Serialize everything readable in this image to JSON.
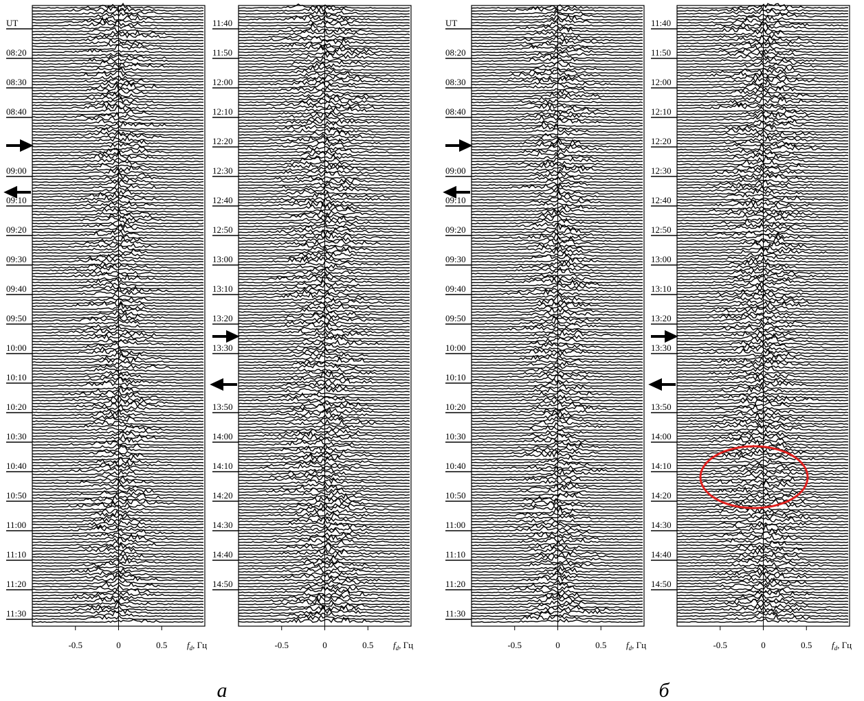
{
  "panels": [
    {
      "type": "stacked-spectra",
      "xlim": [
        -1,
        1
      ],
      "xticks": [
        -0.5,
        0,
        0.5
      ],
      "x_label": {
        "symbol": "f",
        "subscript": "d",
        "unit": ", Гц"
      },
      "time_labels": [
        "UT",
        "08:20",
        "08:30",
        "08:40",
        null,
        "09:00",
        "09:10",
        "09:20",
        "09:30",
        "09:40",
        "09:50",
        "10:00",
        "10:10",
        "10:20",
        "10:30",
        "10:40",
        "10:50",
        "11:00",
        "11:10",
        "11:20",
        "11:30"
      ]
    },
    {
      "type": "stacked-spectra",
      "xlim": [
        -1,
        1
      ],
      "xticks": [
        -0.5,
        0,
        0.5
      ],
      "x_label": {
        "symbol": "f",
        "subscript": "d",
        "unit": ", Гц"
      },
      "time_labels": [
        "11:40",
        "11:50",
        "12:00",
        "12:10",
        "12:20",
        "12:30",
        "12:40",
        "12:50",
        "13:00",
        "13:10",
        "13:20",
        "13:30",
        null,
        "13:50",
        "14:00",
        "14:10",
        "14:20",
        "14:30",
        "14:40",
        "14:50"
      ]
    },
    {
      "type": "stacked-spectra",
      "xlim": [
        -1,
        1
      ],
      "xticks": [
        -0.5,
        0,
        0.5
      ],
      "x_label": {
        "symbol": "f",
        "subscript": "d",
        "unit": ", Гц"
      },
      "time_labels": [
        "UT",
        "08:20",
        "08:30",
        "08:40",
        null,
        "09:00",
        "09:10",
        "09:20",
        "09:30",
        "09:40",
        "09:50",
        "10:00",
        "10:10",
        "10:20",
        "10:30",
        "10:40",
        "10:50",
        "11:00",
        "11:10",
        "11:20",
        "11:30"
      ]
    },
    {
      "type": "stacked-spectra",
      "xlim": [
        -1,
        1
      ],
      "xticks": [
        -0.5,
        0,
        0.5
      ],
      "x_label": {
        "symbol": "f",
        "subscript": "d",
        "unit": ", Гц"
      },
      "time_labels": [
        "11:40",
        "11:50",
        "12:00",
        "12:10",
        "12:20",
        "12:30",
        "12:40",
        "12:50",
        "13:00",
        "13:10",
        "13:20",
        "13:30",
        null,
        "13:50",
        "14:00",
        "14:10",
        "14:20",
        "14:30",
        "14:40",
        "14:50"
      ]
    }
  ],
  "captions": [
    "а",
    "б"
  ]
}
